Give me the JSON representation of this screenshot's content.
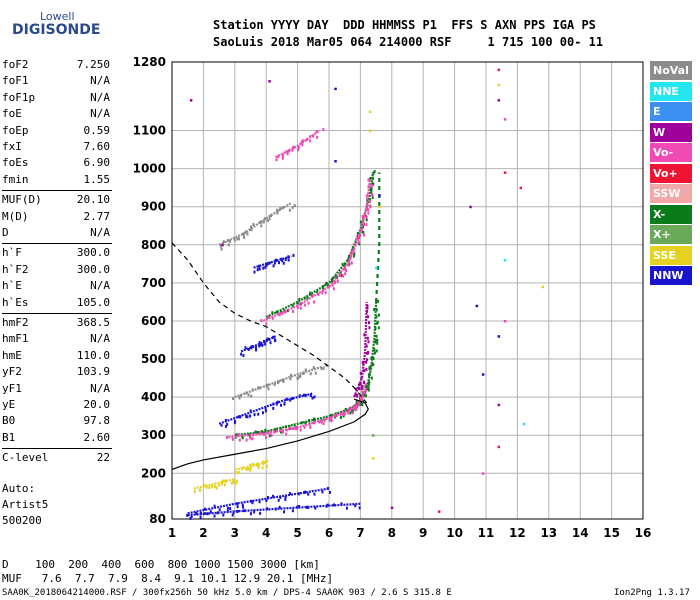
{
  "logo": {
    "line1": "Lowell",
    "line2": "DIGISONDE"
  },
  "header": {
    "labels_line": "Station YYYY DAY  DDD HHMMSS P1  FFS S AXN PPS IGA PS",
    "values_line": "SaoLuis 2018 Mar05 064 214000 RSF     1 715 100 00- 11"
  },
  "params": [
    {
      "name": "foF2",
      "value": "7.250"
    },
    {
      "name": "foF1",
      "value": "N/A"
    },
    {
      "name": "foF1p",
      "value": "N/A"
    },
    {
      "name": "foE",
      "value": "N/A"
    },
    {
      "name": "foEp",
      "value": "0.59"
    },
    {
      "name": "fxI",
      "value": "7.60"
    },
    {
      "name": "foEs",
      "value": "6.90"
    },
    {
      "name": "fmin",
      "value": "1.55"
    },
    {
      "name": "MUF(D)",
      "value": "20.10"
    },
    {
      "name": "M(D)",
      "value": "2.77"
    },
    {
      "name": "D",
      "value": "N/A"
    },
    {
      "name": "h`F",
      "value": "300.0"
    },
    {
      "name": "h`F2",
      "value": "300.0"
    },
    {
      "name": "h`E",
      "value": "N/A"
    },
    {
      "name": "h`Es",
      "value": "105.0"
    },
    {
      "name": "hmF2",
      "value": "368.5"
    },
    {
      "name": "hmF1",
      "value": "N/A"
    },
    {
      "name": "hmE",
      "value": "110.0"
    },
    {
      "name": "yF2",
      "value": "103.9"
    },
    {
      "name": "yF1",
      "value": "N/A"
    },
    {
      "name": "yE",
      "value": "20.0"
    },
    {
      "name": "B0",
      "value": "97.8"
    },
    {
      "name": "B1",
      "value": "2.60"
    },
    {
      "name": "C-level",
      "value": "22"
    }
  ],
  "autoscale": {
    "line1": "Auto:",
    "line2": "Artist5",
    "line3": "500200"
  },
  "legend": [
    {
      "label": "NoVal",
      "color": "#8c8c8c"
    },
    {
      "label": "NNE",
      "color": "#22e6f0"
    },
    {
      "label": "E",
      "color": "#3b8ff0"
    },
    {
      "label": "W",
      "color": "#a0009a"
    },
    {
      "label": "Vo-",
      "color": "#f04ab4"
    },
    {
      "label": "Vo+",
      "color": "#f01432"
    },
    {
      "label": "SSW",
      "color": "#f0a8a8"
    },
    {
      "label": "X-",
      "color": "#0a7a1a"
    },
    {
      "label": "X+",
      "color": "#6aa85a"
    },
    {
      "label": "SSE",
      "color": "#e6d21e"
    },
    {
      "label": "NNW",
      "color": "#1a14d0"
    }
  ],
  "mufs": {
    "d_line": "D    100  200  400  600  800 1000 1500 3000 [km]",
    "muf_line": "MUF   7.6  7.7  7.9  8.4  9.1 10.1 12.9 20.1 [MHz]"
  },
  "footer": {
    "left": "SAA0K_2018064214000.RSF / 300fx256h 50 kHz 5.0 km / DPS-4 SAA0K 903 / 2.6 S 315.8 E",
    "right": "Ion2Png 1.3.17"
  },
  "chart_data": {
    "type": "scatter",
    "title": "",
    "xlabel": "",
    "ylabel": "",
    "xlim": [
      1,
      16
    ],
    "ylim": [
      80,
      1280
    ],
    "grid": true,
    "xticks": [
      1,
      2,
      3,
      4,
      5,
      6,
      7,
      8,
      9,
      10,
      11,
      12,
      13,
      14,
      15,
      16
    ],
    "yticks": [
      80,
      200,
      300,
      400,
      500,
      600,
      700,
      800,
      900,
      1000,
      1100,
      1280
    ],
    "traces": [
      {
        "name": "X-",
        "color": "#0a7a1a",
        "segments": [
          [
            [
              3.0,
              300
            ],
            [
              4.0,
              310
            ],
            [
              5.0,
              330
            ],
            [
              6.0,
              350
            ],
            [
              6.7,
              370
            ],
            [
              7.0,
              390
            ],
            [
              7.2,
              420
            ],
            [
              7.35,
              480
            ],
            [
              7.45,
              560
            ],
            [
              7.5,
              650
            ]
          ],
          [
            [
              4.0,
              610
            ],
            [
              5.0,
              650
            ],
            [
              6.0,
              700
            ],
            [
              6.6,
              760
            ],
            [
              7.0,
              840
            ],
            [
              7.3,
              930
            ],
            [
              7.4,
              990
            ]
          ]
        ]
      },
      {
        "name": "Vo-",
        "color": "#f04ab4",
        "segments": [
          [
            [
              2.8,
              295
            ],
            [
              4.0,
              305
            ],
            [
              5.0,
              320
            ],
            [
              6.0,
              345
            ],
            [
              6.6,
              365
            ],
            [
              7.0,
              390
            ],
            [
              7.1,
              430
            ]
          ],
          [
            [
              3.9,
              600
            ],
            [
              5.0,
              640
            ],
            [
              6.0,
              690
            ],
            [
              6.6,
              750
            ],
            [
              7.0,
              830
            ],
            [
              7.2,
              900
            ],
            [
              7.3,
              970
            ]
          ],
          [
            [
              4.3,
              1030
            ],
            [
              5.0,
              1060
            ],
            [
              5.7,
              1100
            ]
          ]
        ]
      },
      {
        "name": "W",
        "color": "#a0009a",
        "segments": [
          [
            [
              6.8,
              400
            ],
            [
              7.05,
              450
            ],
            [
              7.15,
              520
            ],
            [
              7.2,
              650
            ]
          ]
        ]
      },
      {
        "name": "NNW",
        "color": "#1a14d0",
        "segments": [
          [
            [
              3.2,
              520
            ],
            [
              3.8,
              540
            ],
            [
              4.3,
              560
            ]
          ],
          [
            [
              3.6,
              740
            ],
            [
              4.2,
              755
            ],
            [
              4.8,
              770
            ]
          ],
          [
            [
              2.5,
              330
            ],
            [
              3.5,
              360
            ],
            [
              4.5,
              390
            ],
            [
              5.5,
              410
            ]
          ],
          [
            [
              1.5,
              95
            ],
            [
              3.0,
              120
            ],
            [
              4.5,
              140
            ],
            [
              6.0,
              160
            ]
          ],
          [
            [
              1.5,
              90
            ],
            [
              3.0,
              100
            ],
            [
              5.0,
              110
            ],
            [
              7.0,
              120
            ]
          ]
        ]
      },
      {
        "name": "SSE",
        "color": "#e6d21e",
        "segments": [
          [
            [
              3.0,
              210
            ],
            [
              3.6,
              220
            ],
            [
              4.0,
              230
            ]
          ],
          [
            [
              1.7,
              160
            ],
            [
              2.5,
              175
            ],
            [
              3.0,
              185
            ]
          ]
        ]
      },
      {
        "name": "NoVal",
        "color": "#8c8c8c",
        "segments": [
          [
            [
              2.5,
              800
            ],
            [
              3.3,
              830
            ],
            [
              4.0,
              870
            ],
            [
              4.8,
              910
            ]
          ],
          [
            [
              3.0,
              400
            ],
            [
              4.0,
              430
            ],
            [
              5.0,
              460
            ],
            [
              5.8,
              480
            ]
          ]
        ]
      }
    ],
    "es_trace": {
      "name": "X-",
      "color": "#0a7a1a",
      "points": [
        [
          7.5,
          650
        ],
        [
          7.6,
          800
        ],
        [
          7.6,
          990
        ]
      ]
    },
    "scatter_points": [
      {
        "x": 11.4,
        "y": 1260,
        "color": "#f01432"
      },
      {
        "x": 11.4,
        "y": 1220,
        "color": "#e6d21e"
      },
      {
        "x": 11.4,
        "y": 1180,
        "color": "#a0009a"
      },
      {
        "x": 11.6,
        "y": 1130,
        "color": "#f04ab4"
      },
      {
        "x": 11.6,
        "y": 990,
        "color": "#f01432"
      },
      {
        "x": 12.1,
        "y": 950,
        "color": "#f01432"
      },
      {
        "x": 10.5,
        "y": 900,
        "color": "#a0009a"
      },
      {
        "x": 11.6,
        "y": 760,
        "color": "#22e6f0"
      },
      {
        "x": 12.8,
        "y": 690,
        "color": "#e6d21e"
      },
      {
        "x": 10.7,
        "y": 640,
        "color": "#1a14d0"
      },
      {
        "x": 11.6,
        "y": 600,
        "color": "#f04ab4"
      },
      {
        "x": 11.4,
        "y": 560,
        "color": "#1a14d0"
      },
      {
        "x": 10.9,
        "y": 460,
        "color": "#1a14d0"
      },
      {
        "x": 11.4,
        "y": 380,
        "color": "#a0009a"
      },
      {
        "x": 12.2,
        "y": 330,
        "color": "#22e6f0"
      },
      {
        "x": 11.4,
        "y": 270,
        "color": "#f01432"
      },
      {
        "x": 10.9,
        "y": 200,
        "color": "#f04ab4"
      },
      {
        "x": 6.2,
        "y": 1210,
        "color": "#1a14d0"
      },
      {
        "x": 4.1,
        "y": 1230,
        "color": "#a0009a"
      },
      {
        "x": 1.6,
        "y": 1180,
        "color": "#a0009a"
      },
      {
        "x": 7.3,
        "y": 1150,
        "color": "#e6d21e"
      },
      {
        "x": 7.3,
        "y": 1100,
        "color": "#e6d21e"
      },
      {
        "x": 6.2,
        "y": 1020,
        "color": "#1a14d0"
      },
      {
        "x": 7.6,
        "y": 930,
        "color": "#1a14d0"
      },
      {
        "x": 7.6,
        "y": 900,
        "color": "#e6d21e"
      },
      {
        "x": 2.6,
        "y": 800,
        "color": "#a0009a"
      },
      {
        "x": 7.5,
        "y": 740,
        "color": "#22e6f0"
      },
      {
        "x": 7.4,
        "y": 300,
        "color": "#6aa85a"
      },
      {
        "x": 7.4,
        "y": 240,
        "color": "#e6d21e"
      },
      {
        "x": 8.0,
        "y": 110,
        "color": "#a0009a"
      },
      {
        "x": 9.5,
        "y": 100,
        "color": "#f01432"
      }
    ],
    "profile_curve": {
      "name": "true-height profile",
      "style": "solid",
      "color": "#000000",
      "points": [
        [
          1.0,
          210
        ],
        [
          1.5,
          225
        ],
        [
          2.0,
          235
        ],
        [
          3.0,
          250
        ],
        [
          4.0,
          265
        ],
        [
          5.0,
          285
        ],
        [
          6.0,
          310
        ],
        [
          6.8,
          335
        ],
        [
          7.15,
          355
        ],
        [
          7.25,
          368.5
        ],
        [
          7.15,
          385
        ],
        [
          6.8,
          395
        ]
      ]
    },
    "model_curve": {
      "name": "model profile",
      "style": "dashed",
      "color": "#000000",
      "points": [
        [
          1.0,
          805
        ],
        [
          1.5,
          760
        ],
        [
          2.0,
          700
        ],
        [
          2.5,
          650
        ],
        [
          3.0,
          620
        ],
        [
          3.5,
          600
        ],
        [
          4.0,
          585
        ],
        [
          4.5,
          560
        ],
        [
          5.0,
          535
        ],
        [
          5.5,
          510
        ],
        [
          6.0,
          480
        ],
        [
          6.5,
          450
        ],
        [
          6.8,
          425
        ],
        [
          7.1,
          395
        ],
        [
          7.2,
          385
        ]
      ]
    }
  }
}
